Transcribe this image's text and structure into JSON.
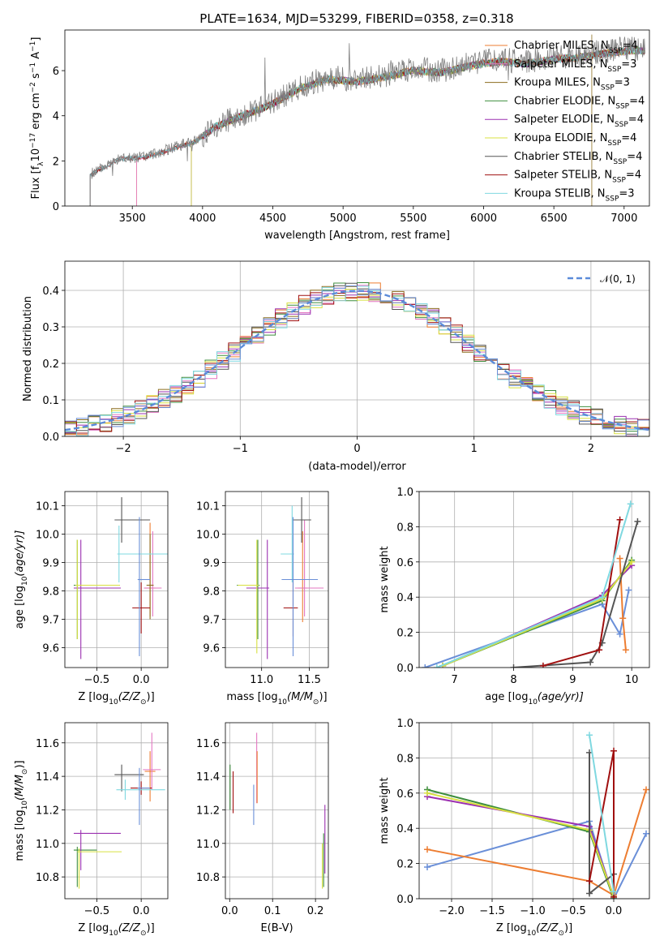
{
  "figure": {
    "title": "PLATE=1634, MJD=53299, FIBERID=0358, z=0.318"
  },
  "model_colors": [
    "#ed7d31",
    "#e377c2",
    "#8c6d1f",
    "#3e8e3e",
    "#9b30b0",
    "#d8e040",
    "#555555",
    "#a01010",
    "#7fd8e0"
  ],
  "chart_data": [
    {
      "id": "spectrum",
      "type": "line",
      "xlabel": "wavelength [Angstrom, rest frame]",
      "ylabel": "Flux [f$_\\lambda$10$^{-17}$ erg cm$^{-2}$ s$^{-1}$ A$^{-1}$]",
      "ylabel_parts": {
        "a": "Flux [f",
        "b": "λ",
        "c": "10",
        "d": "−17",
        "e": " erg cm",
        "f": "−2",
        "g": " s",
        "h": "−1",
        "i": " A",
        "j": "−1",
        "k": "]"
      },
      "xlim": [
        3020,
        7180
      ],
      "ylim": [
        0,
        7.8
      ],
      "xticks": [
        3500,
        4000,
        4500,
        5000,
        5500,
        6000,
        6500,
        7000
      ],
      "yticks": [
        0,
        2,
        4,
        6
      ],
      "data_color": "#808080",
      "data_anchor": [
        [
          3200,
          1.4
        ],
        [
          3400,
          2.1
        ],
        [
          3600,
          2.2
        ],
        [
          3800,
          2.6
        ],
        [
          3950,
          2.9
        ],
        [
          4100,
          3.6
        ],
        [
          4300,
          4.1
        ],
        [
          4500,
          4.6
        ],
        [
          4700,
          5.3
        ],
        [
          4900,
          5.7
        ],
        [
          5100,
          5.6
        ],
        [
          5300,
          5.8
        ],
        [
          5500,
          6.1
        ],
        [
          5700,
          6.0
        ],
        [
          5900,
          6.3
        ],
        [
          6100,
          6.5
        ],
        [
          6300,
          6.4
        ],
        [
          6500,
          6.6
        ],
        [
          6700,
          6.7
        ],
        [
          6900,
          6.9
        ],
        [
          7050,
          7.0
        ]
      ],
      "model_starts": [
        3530,
        3530,
        3920,
        3920,
        3920,
        3920,
        3200,
        3200,
        3200
      ],
      "legend": [
        {
          "name": "Chabrier MILES",
          "nssp": "4"
        },
        {
          "name": "Salpeter MILES",
          "nssp": "3"
        },
        {
          "name": "Kroupa MILES",
          "nssp": "3"
        },
        {
          "name": "Chabrier ELODIE",
          "nssp": "4"
        },
        {
          "name": "Salpeter ELODIE",
          "nssp": "4"
        },
        {
          "name": "Kroupa ELODIE",
          "nssp": "4"
        },
        {
          "name": "Chabrier STELIB",
          "nssp": "4"
        },
        {
          "name": "Salpeter STELIB",
          "nssp": "4"
        },
        {
          "name": "Kroupa STELIB",
          "nssp": "3"
        }
      ],
      "legend_nssp_label": "N",
      "legend_nssp_sub": "SSP"
    },
    {
      "id": "residuals",
      "type": "line",
      "xlabel": "(data-model)/error",
      "ylabel": "Normed distribution",
      "xlim": [
        -2.5,
        2.5
      ],
      "ylim": [
        0,
        0.48
      ],
      "xticks": [
        -2,
        -1,
        0,
        1,
        2
      ],
      "yticks": [
        0.0,
        0.1,
        0.2,
        0.3,
        0.4
      ],
      "grid": true,
      "gaussian_label": "𝒩(0, 1)",
      "gaussian_color": "#5b8bd9",
      "extra_colors": [
        "#6a8fd8"
      ]
    },
    {
      "id": "age_vs_Z",
      "type": "scatter",
      "xlabel": "Z [log10(Z/Z⊙)]",
      "xlabel_parts": {
        "a": "Z [log",
        "b": "10",
        "c": "(Z/Z",
        "d": "⊙",
        "e": ")]"
      },
      "ylabel_parts": {
        "a": "age  [log",
        "b": "10",
        "c": "(age/yr)]"
      },
      "xlim": [
        -0.86,
        0.3
      ],
      "ylim": [
        9.53,
        10.15
      ],
      "xticks": [
        -0.5,
        0.0
      ],
      "yticks": [
        9.6,
        9.7,
        9.8,
        9.9,
        10.0,
        10.1
      ],
      "grid": true,
      "crosses": [
        {
          "color": "#ed7d31",
          "x": 0.1,
          "xerr": [
            0.06,
            0.06
          ],
          "y": 9.81,
          "yerr": [
            0.1,
            0.23
          ]
        },
        {
          "color": "#e377c2",
          "x": 0.13,
          "xerr": [
            0.1,
            0.1
          ],
          "y": 9.81,
          "yerr": [
            0.1,
            0.2
          ]
        },
        {
          "color": "#8c6d1f",
          "x": 0.1,
          "xerr": [
            0.04,
            0.04
          ],
          "y": 9.82,
          "yerr": [
            0.12,
            0.18
          ]
        },
        {
          "color": "#3e8e3e",
          "x": -0.72,
          "xerr": [
            0.04,
            0.48
          ],
          "y": 9.82,
          "yerr": [
            0.19,
            0.16
          ]
        },
        {
          "color": "#9b30b0",
          "x": -0.68,
          "xerr": [
            0.08,
            0.45
          ],
          "y": 9.81,
          "yerr": [
            0.25,
            0.17
          ]
        },
        {
          "color": "#d8e040",
          "x": -0.72,
          "xerr": [
            0.02,
            0.48
          ],
          "y": 9.82,
          "yerr": [
            0.19,
            0.16
          ]
        },
        {
          "color": "#555555",
          "x": -0.22,
          "xerr": [
            0.08,
            0.32
          ],
          "y": 10.05,
          "yerr": [
            0.08,
            0.08
          ]
        },
        {
          "color": "#a01010",
          "x": 0.0,
          "xerr": [
            0.1,
            0.1
          ],
          "y": 9.74,
          "yerr": [
            0.09,
            0.09
          ]
        },
        {
          "color": "#7fd8e0",
          "x": -0.25,
          "xerr": [
            0.02,
            0.55
          ],
          "y": 9.93,
          "yerr": [
            0.1,
            0.1
          ]
        },
        {
          "color": "#6a8fd8",
          "x": -0.02,
          "xerr": [
            0.02,
            0.12
          ],
          "y": 9.84,
          "yerr": [
            0.27,
            0.22
          ]
        }
      ]
    },
    {
      "id": "age_vs_mass",
      "type": "scatter",
      "xlabel_parts": {
        "a": "mass [log",
        "b": "10",
        "c": "(M/M",
        "d": "⊙",
        "e": ")]"
      },
      "xlim": [
        10.62,
        11.7
      ],
      "ylim": [
        9.53,
        10.15
      ],
      "xticks": [
        11.0,
        11.5
      ],
      "yticks": [
        9.6,
        9.7,
        9.8,
        9.9,
        10.0,
        10.1
      ],
      "grid": true,
      "crosses": [
        {
          "color": "#ed7d31",
          "x": 11.43,
          "xerr": [
            0.05,
            0.05
          ],
          "y": 9.81,
          "yerr": [
            0.12,
            0.2
          ]
        },
        {
          "color": "#e377c2",
          "x": 11.45,
          "xerr": [
            0.1,
            0.2
          ],
          "y": 9.81,
          "yerr": [
            0.1,
            0.24
          ]
        },
        {
          "color": "#3e8e3e",
          "x": 10.96,
          "xerr": [
            0.22,
            0.02
          ],
          "y": 9.82,
          "yerr": [
            0.19,
            0.16
          ]
        },
        {
          "color": "#9b30b0",
          "x": 11.06,
          "xerr": [
            0.22,
            0.02
          ],
          "y": 9.81,
          "yerr": [
            0.25,
            0.17
          ]
        },
        {
          "color": "#d8e040",
          "x": 10.95,
          "xerr": [
            0.2,
            0.02
          ],
          "y": 9.82,
          "yerr": [
            0.24,
            0.16
          ]
        },
        {
          "color": "#555555",
          "x": 11.42,
          "xerr": [
            0.1,
            0.1
          ],
          "y": 10.05,
          "yerr": [
            0.08,
            0.08
          ]
        },
        {
          "color": "#a01010",
          "x": 11.33,
          "xerr": [
            0.1,
            0.05
          ],
          "y": 9.74,
          "yerr": [
            0.1,
            0.1
          ]
        },
        {
          "color": "#7fd8e0",
          "x": 11.32,
          "xerr": [
            0.12,
            0.02
          ],
          "y": 9.93,
          "yerr": [
            0.1,
            0.17
          ]
        },
        {
          "color": "#6a8fd8",
          "x": 11.33,
          "xerr": [
            0.12,
            0.26
          ],
          "y": 9.84,
          "yerr": [
            0.27,
            0.22
          ]
        }
      ]
    },
    {
      "id": "weight_vs_age",
      "type": "line",
      "xlabel_parts": {
        "a": "age  [log",
        "b": "10",
        "c": "(age/yr)]"
      },
      "ylabel": "mass weight",
      "xlim": [
        6.4,
        10.3
      ],
      "ylim": [
        0,
        1
      ],
      "xticks": [
        7,
        8,
        9,
        10
      ],
      "yticks": [
        0.0,
        0.2,
        0.4,
        0.6,
        0.8,
        1.0
      ],
      "grid": true,
      "series": [
        {
          "color": "#6a8fd8",
          "points": [
            [
              6.5,
              0.0
            ],
            [
              9.5,
              0.36
            ],
            [
              9.8,
              0.19
            ],
            [
              9.95,
              0.44
            ]
          ]
        },
        {
          "color": "#ed7d31",
          "points": [
            [
              9.8,
              0.62
            ],
            [
              9.85,
              0.28
            ],
            [
              9.9,
              0.1
            ]
          ]
        },
        {
          "color": "#3e8e3e",
          "points": [
            [
              6.8,
              0.01
            ],
            [
              9.5,
              0.38
            ],
            [
              10.0,
              0.61
            ]
          ]
        },
        {
          "color": "#9b30b0",
          "points": [
            [
              6.8,
              0.01
            ],
            [
              9.5,
              0.41
            ],
            [
              10.0,
              0.58
            ]
          ]
        },
        {
          "color": "#d8e040",
          "points": [
            [
              6.8,
              0.01
            ],
            [
              9.5,
              0.39
            ],
            [
              10.0,
              0.6
            ]
          ]
        },
        {
          "color": "#555555",
          "points": [
            [
              8.0,
              0.0
            ],
            [
              9.3,
              0.03
            ],
            [
              9.5,
              0.14
            ],
            [
              10.1,
              0.83
            ]
          ]
        },
        {
          "color": "#a01010",
          "points": [
            [
              8.5,
              0.01
            ],
            [
              9.45,
              0.1
            ],
            [
              9.8,
              0.84
            ]
          ]
        },
        {
          "color": "#7fd8e0",
          "points": [
            [
              6.7,
              0.0
            ],
            [
              9.5,
              0.4
            ],
            [
              9.98,
              0.93
            ]
          ]
        }
      ]
    },
    {
      "id": "mass_vs_Z",
      "type": "scatter",
      "xlabel_parts": {
        "a": "Z [log",
        "b": "10",
        "c": "(Z/Z",
        "d": "⊙",
        "e": ")]"
      },
      "ylabel_parts": {
        "a": "mass [log",
        "b": "10",
        "c": "(M/M",
        "d": "⊙",
        "e": ")]"
      },
      "xlim": [
        -0.86,
        0.3
      ],
      "ylim": [
        10.67,
        11.72
      ],
      "xticks": [
        -0.5,
        0.0
      ],
      "yticks": [
        10.8,
        11.0,
        11.2,
        11.4,
        11.6
      ],
      "grid": true,
      "crosses": [
        {
          "color": "#ed7d31",
          "x": 0.1,
          "xerr": [
            0.06,
            0.06
          ],
          "y": 11.43,
          "yerr": [
            0.18,
            0.12
          ]
        },
        {
          "color": "#e377c2",
          "x": 0.12,
          "xerr": [
            0.1,
            0.1
          ],
          "y": 11.44,
          "yerr": [
            0.12,
            0.22
          ]
        },
        {
          "color": "#3e8e3e",
          "x": -0.72,
          "xerr": [
            0.04,
            0.22
          ],
          "y": 10.96,
          "yerr": [
            0.22,
            0.02
          ]
        },
        {
          "color": "#9b30b0",
          "x": -0.68,
          "xerr": [
            0.08,
            0.45
          ],
          "y": 11.06,
          "yerr": [
            0.22,
            0.02
          ]
        },
        {
          "color": "#d8e040",
          "x": -0.7,
          "xerr": [
            0.02,
            0.48
          ],
          "y": 10.95,
          "yerr": [
            0.22,
            0.02
          ]
        },
        {
          "color": "#555555",
          "x": -0.22,
          "xerr": [
            0.08,
            0.25
          ],
          "y": 11.41,
          "yerr": [
            0.1,
            0.06
          ]
        },
        {
          "color": "#a01010",
          "x": 0.0,
          "xerr": [
            0.12,
            0.12
          ],
          "y": 11.33,
          "yerr": [
            0.04,
            0.04
          ]
        },
        {
          "color": "#7fd8e0",
          "x": -0.18,
          "xerr": [
            0.1,
            0.45
          ],
          "y": 11.32,
          "yerr": [
            0.06,
            0.06
          ]
        },
        {
          "color": "#6a8fd8",
          "x": -0.02,
          "xerr": [
            0.02,
            0.12
          ],
          "y": 11.33,
          "yerr": [
            0.22,
            0.12
          ]
        }
      ]
    },
    {
      "id": "mass_vs_ebv",
      "type": "scatter",
      "xlabel": "E(B-V)",
      "xlim": [
        -0.01,
        0.23
      ],
      "ylim": [
        10.67,
        11.72
      ],
      "xticks": [
        0.0,
        0.1,
        0.2
      ],
      "yticks": [
        10.8,
        11.0,
        11.2,
        11.4,
        11.6
      ],
      "grid": true,
      "vbars": [
        {
          "color": "#3e8e3e",
          "x": 0.001,
          "y0": 11.2,
          "y1": 11.47
        },
        {
          "color": "#a01010",
          "x": 0.008,
          "y0": 11.18,
          "y1": 11.43
        },
        {
          "color": "#e377c2",
          "x": 0.063,
          "y0": 11.24,
          "y1": 11.66
        },
        {
          "color": "#ed7d31",
          "x": 0.064,
          "y0": 11.24,
          "y1": 11.55
        },
        {
          "color": "#6a8fd8",
          "x": 0.056,
          "y0": 11.11,
          "y1": 11.35
        },
        {
          "color": "#d8e040",
          "x": 0.216,
          "y0": 10.73,
          "y1": 11.0
        },
        {
          "color": "#9b30b0",
          "x": 0.222,
          "y0": 10.82,
          "y1": 11.23
        },
        {
          "color": "#3e8e3e",
          "x": 0.219,
          "y0": 10.74,
          "y1": 11.06
        }
      ]
    },
    {
      "id": "weight_vs_Z",
      "type": "line",
      "xlabel_parts": {
        "a": "Z [log",
        "b": "10",
        "c": "(Z/Z",
        "d": "⊙",
        "e": ")]"
      },
      "ylabel": "mass weight",
      "xlim": [
        -2.4,
        0.44
      ],
      "ylim": [
        0,
        1
      ],
      "xticks": [
        -2.0,
        -1.5,
        -1.0,
        -0.5,
        0.0
      ],
      "yticks": [
        0.0,
        0.2,
        0.4,
        0.6,
        0.8,
        1.0
      ],
      "grid": true,
      "series": [
        {
          "color": "#6a8fd8",
          "points": [
            [
              -2.3,
              0.18
            ],
            [
              -0.3,
              0.44
            ],
            [
              0.0,
              0.0
            ],
            [
              0.4,
              0.37
            ]
          ]
        },
        {
          "color": "#ed7d31",
          "points": [
            [
              -2.3,
              0.28
            ],
            [
              -0.3,
              0.1
            ],
            [
              0.0,
              0.02
            ],
            [
              0.4,
              0.62
            ]
          ]
        },
        {
          "color": "#3e8e3e",
          "points": [
            [
              -2.3,
              0.62
            ],
            [
              -0.3,
              0.38
            ],
            [
              0.0,
              0.0
            ]
          ]
        },
        {
          "color": "#9b30b0",
          "points": [
            [
              -2.3,
              0.58
            ],
            [
              -0.3,
              0.41
            ],
            [
              0.0,
              0.01
            ]
          ]
        },
        {
          "color": "#d8e040",
          "points": [
            [
              -2.3,
              0.6
            ],
            [
              -0.3,
              0.39
            ],
            [
              0.0,
              0.01
            ]
          ]
        },
        {
          "color": "#555555",
          "points": [
            [
              -0.3,
              0.83
            ],
            [
              -0.3,
              0.03
            ],
            [
              0.0,
              0.14
            ]
          ]
        },
        {
          "color": "#a01010",
          "points": [
            [
              -0.3,
              0.1
            ],
            [
              0.0,
              0.84
            ],
            [
              0.0,
              0.01
            ]
          ]
        },
        {
          "color": "#7fd8e0",
          "points": [
            [
              -0.3,
              0.93
            ],
            [
              0.0,
              0.04
            ]
          ]
        }
      ]
    }
  ]
}
